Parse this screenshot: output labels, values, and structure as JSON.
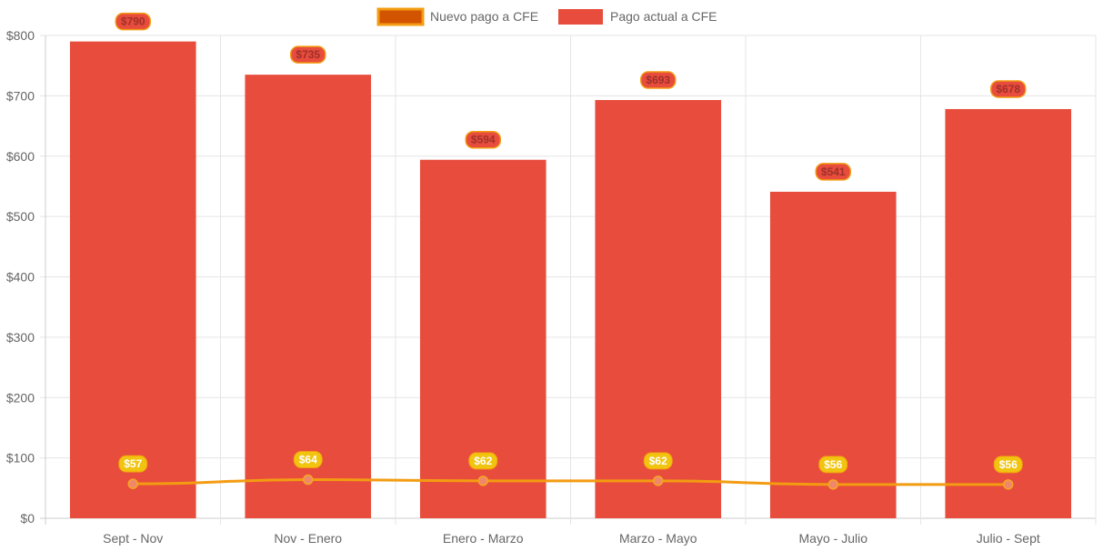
{
  "chart_data": {
    "type": "bar",
    "categories": [
      "Sept - Nov",
      "Nov - Enero",
      "Enero - Marzo",
      "Marzo - Mayo",
      "Mayo - Julio",
      "Julio - Sept"
    ],
    "series": [
      {
        "name": "Nuevo pago a CFE",
        "type": "line",
        "values": [
          57,
          64,
          62,
          62,
          56,
          56
        ],
        "labels": [
          "$57",
          "$64",
          "$62",
          "$62",
          "$56",
          "$56"
        ],
        "color": "#f39c12",
        "legend_fill": "#d35400"
      },
      {
        "name": "Pago actual a CFE",
        "type": "bar",
        "values": [
          790,
          735,
          594,
          693,
          541,
          678
        ],
        "labels": [
          "$790",
          "$735",
          "$594",
          "$693",
          "$541",
          "$678"
        ],
        "color": "#e74c3c"
      }
    ],
    "y_ticks": [
      "$0",
      "$100",
      "$200",
      "$300",
      "$400",
      "$500",
      "$600",
      "$700",
      "$800"
    ],
    "ylim": [
      0,
      800
    ],
    "grid": true,
    "legend_position": "top-center",
    "title": "",
    "xlabel": "",
    "ylabel": ""
  }
}
